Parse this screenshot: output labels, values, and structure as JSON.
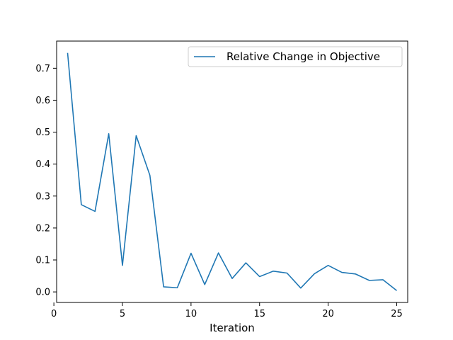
{
  "chart_data": {
    "type": "line",
    "xlabel": "Iteration",
    "ylabel": "",
    "xlim": [
      0.2,
      25.8
    ],
    "ylim": [
      -0.033,
      0.785
    ],
    "xticks": [
      0,
      5,
      10,
      15,
      20,
      25
    ],
    "yticks": [
      0.0,
      0.1,
      0.2,
      0.3,
      0.4,
      0.5,
      0.6,
      0.7
    ],
    "xtick_labels": [
      "0",
      "5",
      "10",
      "15",
      "20",
      "25"
    ],
    "ytick_labels": [
      "0.0",
      "0.1",
      "0.2",
      "0.3",
      "0.4",
      "0.5",
      "0.6",
      "0.7"
    ],
    "grid": false,
    "legend": {
      "placement": "top-right"
    },
    "series": [
      {
        "name": "Relative Change in Objective",
        "color": "#1f77b4",
        "x": [
          1,
          2,
          3,
          4,
          5,
          6,
          7,
          8,
          9,
          10,
          11,
          12,
          13,
          14,
          15,
          16,
          17,
          18,
          19,
          20,
          21,
          22,
          23,
          24,
          25
        ],
        "y": [
          0.748,
          0.273,
          0.252,
          0.495,
          0.083,
          0.489,
          0.365,
          0.016,
          0.013,
          0.121,
          0.023,
          0.122,
          0.042,
          0.091,
          0.048,
          0.065,
          0.059,
          0.012,
          0.057,
          0.083,
          0.061,
          0.056,
          0.036,
          0.038,
          0.004
        ]
      }
    ]
  }
}
